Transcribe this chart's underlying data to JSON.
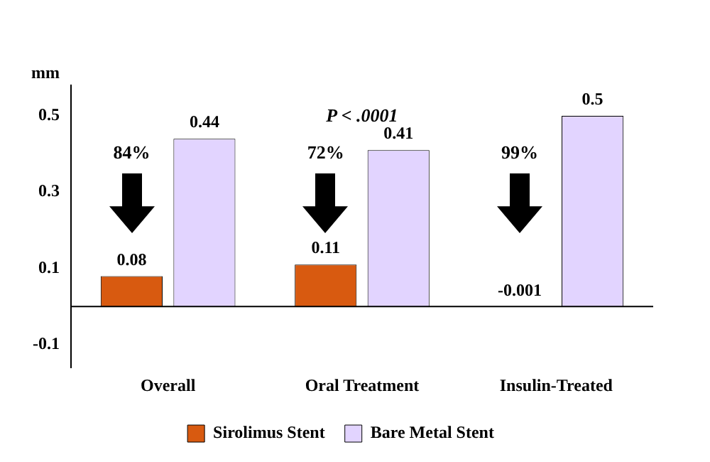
{
  "chart_data": {
    "type": "bar",
    "ylabel": "mm",
    "categories": [
      "Overall",
      "Oral Treatment",
      "Insulin-Treated"
    ],
    "series": [
      {
        "name": "Sirolimus Stent",
        "color": "#d85a10",
        "values": [
          0.08,
          0.11,
          -0.001
        ]
      },
      {
        "name": "Bare Metal Stent",
        "color": "#e2d4ff",
        "values": [
          0.44,
          0.41,
          0.5
        ]
      }
    ],
    "ylim": [
      -0.16,
      0.58
    ],
    "yticks": [
      -0.1,
      0.1,
      0.3,
      0.5
    ],
    "data_labels": true,
    "legend": "bottom",
    "grid": false,
    "annotations": [
      "P < .0001",
      "84%",
      "72%",
      "99%"
    ]
  }
}
